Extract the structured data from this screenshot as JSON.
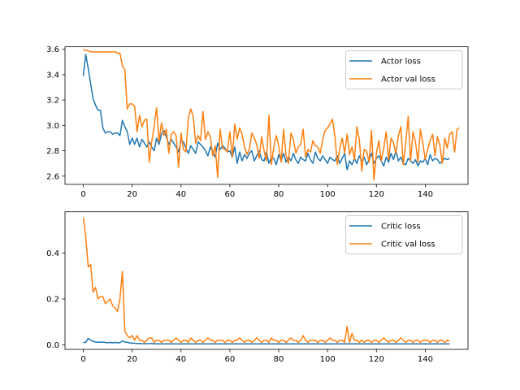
{
  "chart_data": [
    {
      "type": "line",
      "xlim": [
        -7.5,
        157.5
      ],
      "ylim": [
        2.535,
        3.62
      ],
      "xticks": [
        0,
        20,
        40,
        60,
        80,
        100,
        120,
        140
      ],
      "yticks": [
        2.6,
        2.8,
        3.0,
        3.2,
        3.4,
        3.6
      ],
      "ytick_labels": [
        "2.6",
        "2.8",
        "3.0",
        "3.2",
        "3.4",
        "3.6"
      ],
      "grid": false,
      "legend_position": "top-right",
      "series": [
        {
          "name": "Actor loss",
          "color": "#1f77b4",
          "values": [
            3.39,
            3.56,
            3.45,
            3.33,
            3.21,
            3.16,
            3.12,
            3.12,
            2.98,
            2.94,
            2.95,
            2.95,
            2.93,
            2.94,
            2.94,
            2.92,
            3.04,
            2.99,
            2.95,
            2.85,
            2.9,
            2.85,
            2.9,
            2.83,
            2.89,
            2.86,
            2.83,
            2.87,
            2.83,
            2.8,
            2.9,
            2.85,
            2.93,
            2.96,
            2.91,
            2.85,
            2.89,
            2.86,
            2.83,
            2.79,
            2.88,
            2.87,
            2.82,
            2.78,
            2.84,
            2.81,
            2.78,
            2.87,
            2.85,
            2.83,
            2.8,
            2.76,
            2.83,
            2.79,
            2.75,
            2.86,
            2.81,
            2.84,
            2.82,
            2.79,
            2.8,
            2.75,
            2.83,
            2.7,
            2.79,
            2.72,
            2.77,
            2.74,
            2.78,
            2.8,
            2.72,
            2.76,
            2.8,
            2.73,
            2.72,
            2.79,
            2.7,
            2.75,
            2.74,
            2.69,
            2.77,
            2.72,
            2.78,
            2.71,
            2.75,
            2.72,
            2.78,
            2.73,
            2.7,
            2.75,
            2.73,
            2.72,
            2.78,
            2.73,
            2.7,
            2.79,
            2.74,
            2.72,
            2.76,
            2.73,
            2.7,
            2.75,
            2.73,
            2.72,
            2.76,
            2.7,
            2.74,
            2.78,
            2.65,
            2.72,
            2.69,
            2.74,
            2.7,
            2.76,
            2.72,
            2.75,
            2.69,
            2.73,
            2.78,
            2.7,
            2.74,
            2.76,
            2.72,
            2.68,
            2.75,
            2.71,
            2.78,
            2.73,
            2.8,
            2.72,
            2.75,
            2.7,
            2.69,
            2.74,
            2.72,
            2.7,
            2.73,
            2.68,
            2.72,
            2.71,
            2.74,
            2.69,
            2.77,
            2.72,
            2.74,
            2.73,
            2.7,
            2.72,
            2.74,
            2.73,
            2.74
          ]
        },
        {
          "name": "Actor val loss",
          "color": "#ff7f0e",
          "values": [
            3.6,
            3.59,
            3.59,
            3.58,
            3.58,
            3.58,
            3.58,
            3.58,
            3.58,
            3.58,
            3.58,
            3.58,
            3.58,
            3.58,
            3.57,
            3.57,
            3.47,
            3.44,
            3.13,
            3.17,
            3.17,
            3.15,
            2.95,
            3.08,
            2.99,
            3.04,
            3.05,
            2.71,
            2.87,
            2.99,
            3.14,
            2.87,
            3.02,
            2.92,
            2.97,
            2.78,
            2.93,
            2.95,
            2.92,
            2.67,
            2.94,
            2.81,
            2.79,
            3.06,
            3.13,
            3.07,
            2.86,
            2.92,
            2.88,
            3.11,
            2.89,
            2.95,
            2.91,
            2.76,
            2.84,
            2.59,
            2.97,
            2.82,
            2.81,
            2.79,
            2.95,
            2.75,
            3.01,
            2.89,
            2.98,
            2.93,
            2.83,
            2.77,
            2.81,
            2.94,
            2.9,
            2.85,
            2.74,
            2.91,
            2.8,
            2.72,
            3.08,
            2.69,
            2.83,
            2.92,
            2.84,
            2.71,
            2.97,
            2.76,
            2.7,
            2.94,
            2.89,
            2.78,
            2.83,
            2.85,
            2.97,
            2.75,
            2.81,
            2.79,
            2.88,
            2.84,
            2.83,
            2.78,
            2.89,
            2.96,
            2.98,
            3.01,
            3.05,
            2.92,
            2.69,
            2.82,
            2.9,
            2.78,
            2.93,
            2.77,
            2.83,
            2.73,
            2.99,
            2.89,
            2.64,
            2.81,
            2.8,
            2.71,
            2.96,
            2.57,
            2.78,
            2.88,
            2.72,
            2.82,
            2.95,
            2.73,
            2.9,
            2.86,
            2.78,
            2.92,
            2.99,
            2.69,
            2.86,
            3.07,
            2.72,
            2.95,
            2.87,
            2.71,
            2.97,
            2.86,
            2.73,
            2.81,
            2.88,
            2.93,
            2.76,
            2.91,
            2.84,
            2.7,
            2.9,
            2.82,
            2.93,
            2.95,
            2.79,
            2.97,
            2.98
          ]
        }
      ]
    },
    {
      "type": "line",
      "xlim": [
        -7.5,
        157.5
      ],
      "ylim": [
        -0.02,
        0.58
      ],
      "xticks": [
        0,
        20,
        40,
        60,
        80,
        100,
        120,
        140
      ],
      "yticks": [
        0.0,
        0.2,
        0.4
      ],
      "ytick_labels": [
        "0.0",
        "0.2",
        "0.4"
      ],
      "grid": false,
      "legend_position": "top-right",
      "series": [
        {
          "name": "Critic loss",
          "color": "#1f77b4",
          "values": [
            0.01,
            0.011,
            0.028,
            0.02,
            0.015,
            0.012,
            0.011,
            0.011,
            0.012,
            0.01,
            0.009,
            0.01,
            0.009,
            0.01,
            0.009,
            0.009,
            0.017,
            0.012,
            0.011,
            0.008,
            0.007,
            0.007,
            0.005,
            0.006,
            0.005,
            0.005,
            0.005,
            0.005,
            0.006,
            0.004,
            0.005,
            0.004,
            0.004,
            0.004,
            0.004,
            0.004,
            0.004,
            0.004,
            0.004,
            0.004,
            0.004,
            0.004,
            0.004,
            0.004,
            0.004,
            0.004,
            0.004,
            0.004,
            0.004,
            0.004,
            0.004,
            0.004,
            0.004,
            0.004,
            0.004,
            0.004,
            0.004,
            0.004,
            0.004,
            0.004,
            0.004,
            0.004,
            0.004,
            0.004,
            0.004,
            0.004,
            0.004,
            0.004,
            0.004,
            0.004,
            0.004,
            0.004,
            0.004,
            0.004,
            0.004,
            0.004,
            0.004,
            0.004,
            0.004,
            0.004,
            0.004,
            0.004,
            0.004,
            0.004,
            0.004,
            0.004,
            0.004,
            0.004,
            0.004,
            0.004,
            0.004,
            0.004,
            0.004,
            0.004,
            0.004,
            0.004,
            0.004,
            0.004,
            0.004,
            0.004,
            0.004,
            0.004,
            0.004,
            0.004,
            0.004,
            0.004,
            0.004,
            0.004,
            0.004,
            0.004,
            0.004,
            0.004,
            0.004,
            0.004,
            0.004,
            0.004,
            0.004,
            0.004,
            0.004,
            0.004,
            0.004,
            0.004,
            0.004,
            0.004,
            0.004,
            0.004,
            0.004,
            0.004,
            0.004,
            0.004,
            0.004,
            0.004,
            0.004,
            0.004,
            0.004,
            0.004,
            0.004,
            0.004,
            0.004,
            0.004,
            0.004,
            0.004,
            0.004,
            0.004,
            0.004,
            0.004,
            0.004,
            0.004,
            0.004,
            0.004,
            0.004
          ]
        },
        {
          "name": "Critic val loss",
          "color": "#ff7f0e",
          "values": [
            0.555,
            0.47,
            0.34,
            0.35,
            0.23,
            0.25,
            0.2,
            0.21,
            0.21,
            0.18,
            0.19,
            0.2,
            0.17,
            0.16,
            0.145,
            0.2,
            0.32,
            0.06,
            0.04,
            0.03,
            0.04,
            0.02,
            0.04,
            0.02,
            0.02,
            0.01,
            0.02,
            0.03,
            0.03,
            0.01,
            0.02,
            0.02,
            0.01,
            0.02,
            0.02,
            0.02,
            0.01,
            0.02,
            0.03,
            0.02,
            0.01,
            0.02,
            0.02,
            0.01,
            0.03,
            0.02,
            0.01,
            0.02,
            0.02,
            0.01,
            0.02,
            0.03,
            0.02,
            0.02,
            0.01,
            0.02,
            0.02,
            0.02,
            0.01,
            0.02,
            0.02,
            0.01,
            0.02,
            0.02,
            0.03,
            0.02,
            0.01,
            0.02,
            0.02,
            0.01,
            0.02,
            0.03,
            0.02,
            0.01,
            0.02,
            0.02,
            0.01,
            0.03,
            0.02,
            0.02,
            0.01,
            0.02,
            0.02,
            0.01,
            0.02,
            0.03,
            0.02,
            0.02,
            0.01,
            0.02,
            0.04,
            0.02,
            0.01,
            0.02,
            0.02,
            0.02,
            0.01,
            0.02,
            0.02,
            0.01,
            0.02,
            0.03,
            0.02,
            0.02,
            0.01,
            0.02,
            0.02,
            0.01,
            0.08,
            0.01,
            0.05,
            0.02,
            0.02,
            0.01,
            0.02,
            0.01,
            0.02,
            0.02,
            0.01,
            0.02,
            0.02,
            0.01,
            0.02,
            0.03,
            0.02,
            0.01,
            0.02,
            0.02,
            0.01,
            0.02,
            0.03,
            0.02,
            0.01,
            0.02,
            0.02,
            0.01,
            0.02,
            0.02,
            0.01,
            0.02,
            0.02,
            0.02,
            0.01,
            0.02,
            0.02,
            0.01,
            0.02,
            0.02,
            0.01,
            0.02,
            0.015
          ]
        }
      ]
    }
  ]
}
